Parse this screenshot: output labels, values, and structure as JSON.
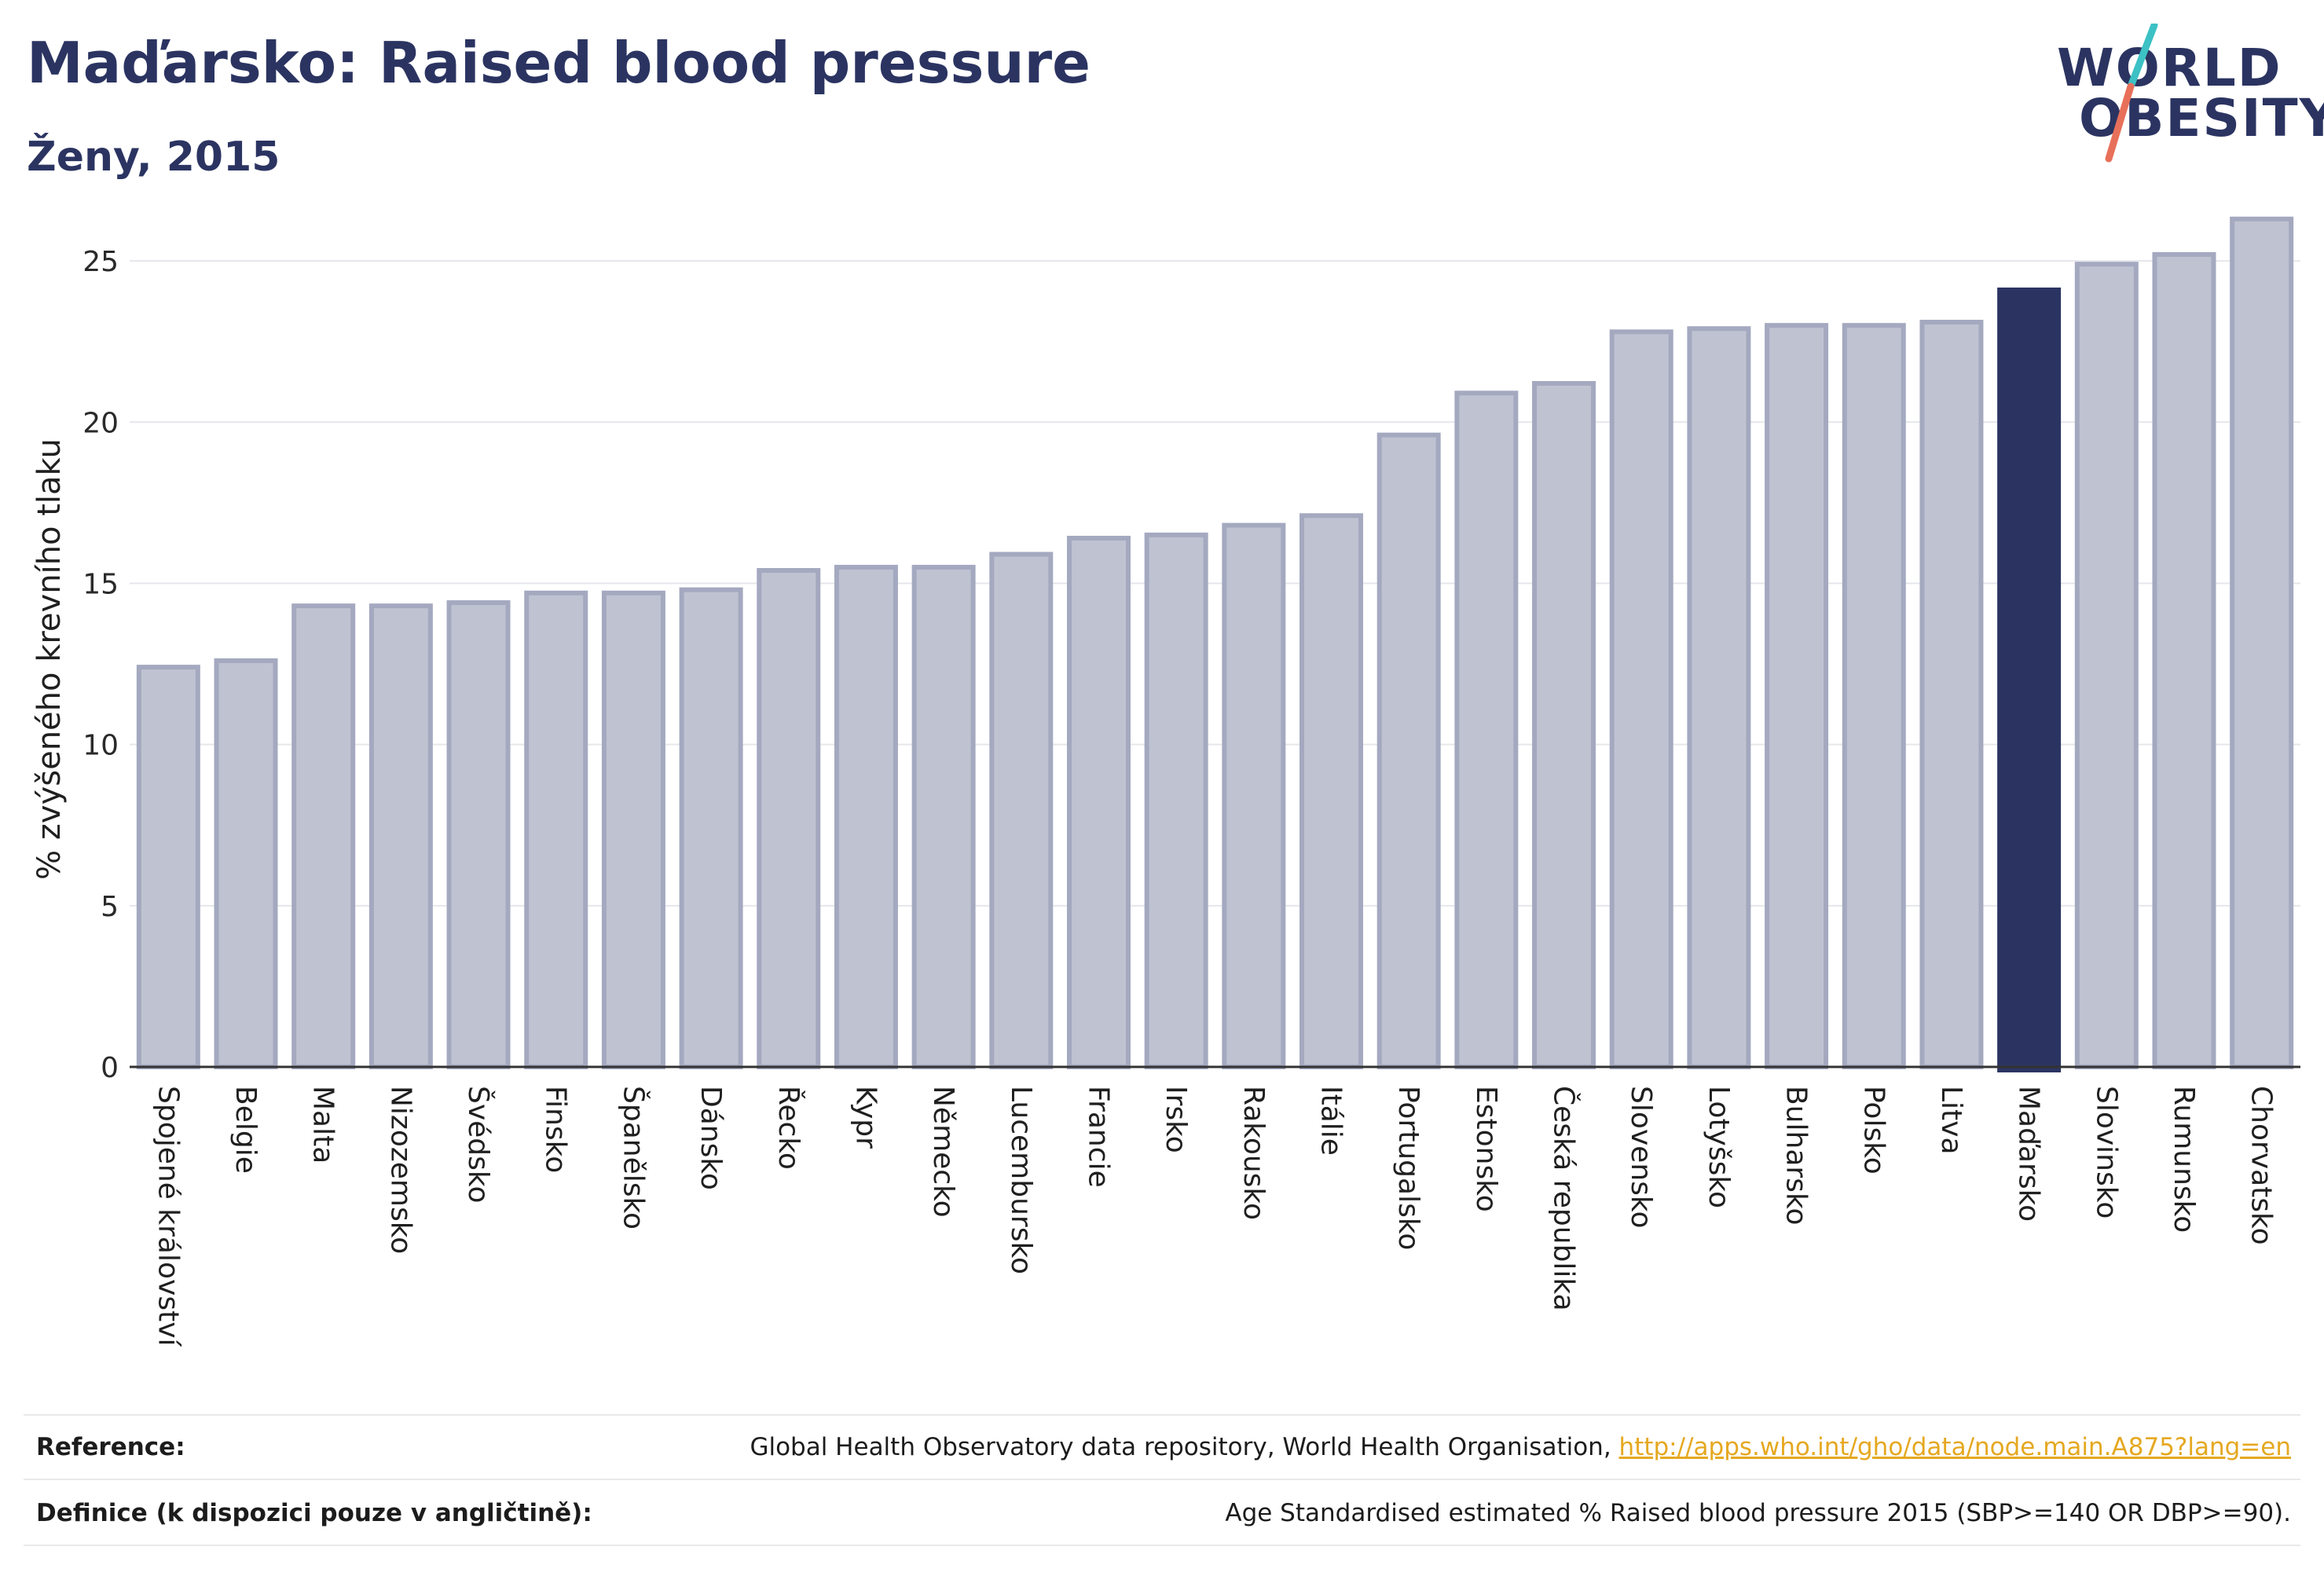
{
  "header": {
    "title": "Maďarsko: Raised blood pressure",
    "subtitle": "Ženy, 2015"
  },
  "logo": {
    "line1": "WORLD",
    "line2": "OBESITY",
    "slash_colors": [
      "#3cc1c4",
      "#e8705a"
    ],
    "text_color": "#2b3461"
  },
  "chart_data": {
    "type": "bar",
    "ylabel": "% zvýšeného krevního tlaku",
    "xlabel": "",
    "ylim": [
      0,
      27
    ],
    "yticks": [
      0,
      5,
      10,
      15,
      20,
      25
    ],
    "grid": true,
    "highlight": "Maďarsko",
    "colors": {
      "bar_fill": "#bfc2d1",
      "bar_stroke": "#a4a9c0",
      "highlight_fill": "#2b3461"
    },
    "categories": [
      "Spojené království",
      "Belgie",
      "Malta",
      "Nizozemsko",
      "Švédsko",
      "Finsko",
      "Španělsko",
      "Dánsko",
      "Řecko",
      "Kypr",
      "Německo",
      "Lucembursko",
      "Francie",
      "Irsko",
      "Rakousko",
      "Itálie",
      "Portugalsko",
      "Estonsko",
      "Česká republika",
      "Slovensko",
      "Lotyšsko",
      "Bulharsko",
      "Polsko",
      "Litva",
      "Maďarsko",
      "Slovinsko",
      "Rumunsko",
      "Chorvatsko"
    ],
    "values": [
      12.4,
      12.6,
      14.3,
      14.3,
      14.4,
      14.7,
      14.7,
      14.8,
      15.4,
      15.5,
      15.5,
      15.9,
      16.4,
      16.5,
      16.8,
      17.1,
      19.6,
      20.9,
      21.2,
      22.8,
      22.9,
      23.0,
      23.0,
      23.1,
      24.1,
      24.9,
      25.2,
      26.3
    ]
  },
  "footer": {
    "reference_label": "Reference:",
    "reference_text": "Global Health Observatory data repository, World Health Organisation, ",
    "reference_link": "http://apps.who.int/gho/data/node.main.A875?lang=en",
    "definition_label": "Definice (k dispozici pouze v angličtině):",
    "definition_text": "Age Standardised estimated % Raised blood pressure 2015 (SBP>=140 OR DBP>=90)."
  }
}
